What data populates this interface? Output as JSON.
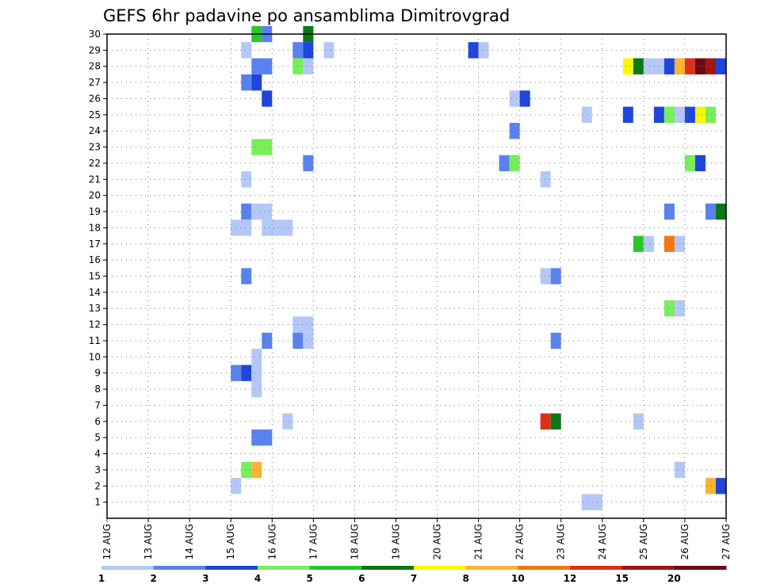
{
  "chart_data": {
    "type": "heatmap",
    "title": "GEFS 6hr padavine po ansamblima Dimitrovgrad",
    "xlabel": "",
    "ylabel": "",
    "x_tick_labels": [
      "12 AUG",
      "13 AUG",
      "14 AUG",
      "15 AUG",
      "16 AUG",
      "17 AUG",
      "18 AUG",
      "19 AUG",
      "20 AUG",
      "21 AUG",
      "22 AUG",
      "23 AUG",
      "24 AUG",
      "25 AUG",
      "26 AUG",
      "27 AUG"
    ],
    "y_tick_labels": [
      "1",
      "2",
      "3",
      "4",
      "5",
      "6",
      "7",
      "8",
      "9",
      "10",
      "11",
      "12",
      "13",
      "14",
      "15",
      "16",
      "17",
      "18",
      "19",
      "20",
      "21",
      "22",
      "23",
      "24",
      "25",
      "26",
      "27",
      "28",
      "29",
      "30"
    ],
    "x_range_days": [
      12,
      27
    ],
    "y_range": [
      0,
      30
    ],
    "grid": true,
    "colorbar": {
      "labels": [
        "1",
        "2",
        "3",
        "4",
        "5",
        "6",
        "7",
        "8",
        "10",
        "12",
        "15",
        "20"
      ],
      "colors": [
        "#b4c8f8",
        "#5a82ee",
        "#1e46dc",
        "#78ee5a",
        "#28c828",
        "#0a7814",
        "#f8f800",
        "#f8b432",
        "#f07814",
        "#dc3214",
        "#a01414",
        "#6e0a14"
      ]
    },
    "cells": [
      {
        "m": 30,
        "day": 15.5,
        "hours": 6,
        "c": 5
      },
      {
        "m": 30,
        "day": 15.75,
        "hours": 6,
        "c": 2
      },
      {
        "m": 30,
        "day": 16.75,
        "hours": 6,
        "c": 6
      },
      {
        "m": 29,
        "day": 15.25,
        "hours": 6,
        "c": 1
      },
      {
        "m": 29,
        "day": 16.5,
        "hours": 6,
        "c": 2
      },
      {
        "m": 29,
        "day": 16.75,
        "hours": 6,
        "c": 3
      },
      {
        "m": 29,
        "day": 17.25,
        "hours": 6,
        "c": 1
      },
      {
        "m": 29,
        "day": 20.75,
        "hours": 6,
        "c": 3
      },
      {
        "m": 29,
        "day": 21.0,
        "hours": 6,
        "c": 1
      },
      {
        "m": 28,
        "day": 15.5,
        "hours": 12,
        "c": 2
      },
      {
        "m": 28,
        "day": 16.5,
        "hours": 6,
        "c": 4
      },
      {
        "m": 28,
        "day": 16.75,
        "hours": 6,
        "c": 1
      },
      {
        "m": 28,
        "day": 24.5,
        "hours": 6,
        "c": 7
      },
      {
        "m": 28,
        "day": 24.75,
        "hours": 6,
        "c": 6
      },
      {
        "m": 28,
        "day": 25.0,
        "hours": 12,
        "c": 1
      },
      {
        "m": 28,
        "day": 25.5,
        "hours": 6,
        "c": 3
      },
      {
        "m": 28,
        "day": 25.75,
        "hours": 6,
        "c": 8
      },
      {
        "m": 28,
        "day": 26.0,
        "hours": 6,
        "c": 10
      },
      {
        "m": 28,
        "day": 26.25,
        "hours": 6,
        "c": 12
      },
      {
        "m": 28,
        "day": 26.5,
        "hours": 6,
        "c": 11
      },
      {
        "m": 28,
        "day": 26.75,
        "hours": 6,
        "c": 3
      },
      {
        "m": 27,
        "day": 15.25,
        "hours": 6,
        "c": 2
      },
      {
        "m": 27,
        "day": 15.5,
        "hours": 6,
        "c": 3
      },
      {
        "m": 26,
        "day": 15.75,
        "hours": 6,
        "c": 3
      },
      {
        "m": 26,
        "day": 21.75,
        "hours": 6,
        "c": 1
      },
      {
        "m": 26,
        "day": 22.0,
        "hours": 6,
        "c": 3
      },
      {
        "m": 25,
        "day": 23.5,
        "hours": 6,
        "c": 1
      },
      {
        "m": 25,
        "day": 24.5,
        "hours": 6,
        "c": 3
      },
      {
        "m": 25,
        "day": 25.25,
        "hours": 6,
        "c": 3
      },
      {
        "m": 25,
        "day": 25.5,
        "hours": 6,
        "c": 4
      },
      {
        "m": 25,
        "day": 25.75,
        "hours": 6,
        "c": 1
      },
      {
        "m": 25,
        "day": 26.0,
        "hours": 6,
        "c": 3
      },
      {
        "m": 25,
        "day": 26.25,
        "hours": 6,
        "c": 7
      },
      {
        "m": 25,
        "day": 26.5,
        "hours": 6,
        "c": 4
      },
      {
        "m": 24,
        "day": 21.75,
        "hours": 6,
        "c": 2
      },
      {
        "m": 23,
        "day": 15.5,
        "hours": 12,
        "c": 4
      },
      {
        "m": 22,
        "day": 16.75,
        "hours": 6,
        "c": 2
      },
      {
        "m": 22,
        "day": 21.5,
        "hours": 6,
        "c": 2
      },
      {
        "m": 22,
        "day": 21.75,
        "hours": 6,
        "c": 4
      },
      {
        "m": 22,
        "day": 26.0,
        "hours": 6,
        "c": 4
      },
      {
        "m": 22,
        "day": 26.25,
        "hours": 6,
        "c": 3
      },
      {
        "m": 21,
        "day": 15.25,
        "hours": 6,
        "c": 1
      },
      {
        "m": 21,
        "day": 22.5,
        "hours": 6,
        "c": 1
      },
      {
        "m": 19,
        "day": 15.25,
        "hours": 6,
        "c": 2
      },
      {
        "m": 19,
        "day": 15.5,
        "hours": 12,
        "c": 1
      },
      {
        "m": 19,
        "day": 25.5,
        "hours": 6,
        "c": 2
      },
      {
        "m": 19,
        "day": 26.5,
        "hours": 6,
        "c": 2
      },
      {
        "m": 19,
        "day": 26.75,
        "hours": 6,
        "c": 6
      },
      {
        "m": 18,
        "day": 15.0,
        "hours": 12,
        "c": 1
      },
      {
        "m": 18,
        "day": 15.75,
        "hours": 18,
        "c": 1
      },
      {
        "m": 17,
        "day": 24.75,
        "hours": 6,
        "c": 5
      },
      {
        "m": 17,
        "day": 25.0,
        "hours": 6,
        "c": 1
      },
      {
        "m": 17,
        "day": 25.5,
        "hours": 6,
        "c": 9
      },
      {
        "m": 17,
        "day": 25.75,
        "hours": 6,
        "c": 1
      },
      {
        "m": 15,
        "day": 15.25,
        "hours": 6,
        "c": 2
      },
      {
        "m": 15,
        "day": 22.5,
        "hours": 6,
        "c": 1
      },
      {
        "m": 15,
        "day": 22.75,
        "hours": 6,
        "c": 2
      },
      {
        "m": 13,
        "day": 25.5,
        "hours": 6,
        "c": 4
      },
      {
        "m": 13,
        "day": 25.75,
        "hours": 6,
        "c": 1
      },
      {
        "m": 12,
        "day": 16.5,
        "hours": 12,
        "c": 1
      },
      {
        "m": 11,
        "day": 15.75,
        "hours": 6,
        "c": 2
      },
      {
        "m": 11,
        "day": 16.5,
        "hours": 6,
        "c": 2
      },
      {
        "m": 11,
        "day": 16.75,
        "hours": 6,
        "c": 1
      },
      {
        "m": 11,
        "day": 22.75,
        "hours": 6,
        "c": 2
      },
      {
        "m": 10,
        "day": 15.5,
        "hours": 6,
        "c": 1
      },
      {
        "m": 9,
        "day": 15.0,
        "hours": 6,
        "c": 2
      },
      {
        "m": 9,
        "day": 15.25,
        "hours": 6,
        "c": 3
      },
      {
        "m": 9,
        "day": 15.5,
        "hours": 6,
        "c": 1
      },
      {
        "m": 8,
        "day": 15.5,
        "hours": 6,
        "c": 1
      },
      {
        "m": 6,
        "day": 16.25,
        "hours": 6,
        "c": 1
      },
      {
        "m": 6,
        "day": 22.5,
        "hours": 6,
        "c": 10
      },
      {
        "m": 6,
        "day": 22.75,
        "hours": 6,
        "c": 6
      },
      {
        "m": 6,
        "day": 24.75,
        "hours": 6,
        "c": 1
      },
      {
        "m": 5,
        "day": 15.5,
        "hours": 12,
        "c": 2
      },
      {
        "m": 3,
        "day": 15.25,
        "hours": 6,
        "c": 4
      },
      {
        "m": 3,
        "day": 15.5,
        "hours": 6,
        "c": 8
      },
      {
        "m": 3,
        "day": 25.75,
        "hours": 6,
        "c": 1
      },
      {
        "m": 2,
        "day": 15.0,
        "hours": 6,
        "c": 1
      },
      {
        "m": 2,
        "day": 26.5,
        "hours": 6,
        "c": 8
      },
      {
        "m": 2,
        "day": 26.75,
        "hours": 6,
        "c": 3
      },
      {
        "m": 1,
        "day": 23.5,
        "hours": 12,
        "c": 1
      }
    ]
  }
}
